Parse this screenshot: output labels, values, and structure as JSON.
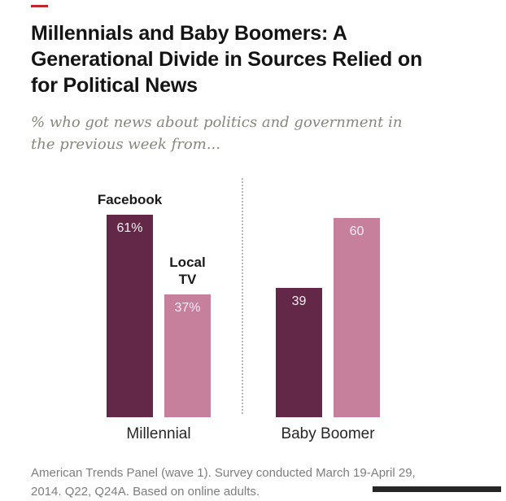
{
  "page": {
    "title": "Millennials and Baby Boomers: A Generational Divide in Sources Relied on for Political News",
    "subtitle": "% who got news about politics and government in the previous week from...",
    "footnote": "American Trends Panel (wave 1). Survey conducted March 19-April 29, 2014. Q22, Q24A. Based on online adults."
  },
  "colors": {
    "accent_red": "#c0272d",
    "bar_dark": "#632847",
    "bar_pink": "#c6809c",
    "subtitle_gray": "#87877e",
    "footnote_gray": "#7d7d7d"
  },
  "chart_data": {
    "type": "bar",
    "title": "Millennials and Baby Boomers: A Generational Divide in Sources Relied on for Political News",
    "subtitle": "% who got news about politics and government in the previous week from...",
    "categories": [
      "Millennial",
      "Baby Boomer"
    ],
    "series": [
      {
        "name": "Facebook",
        "color": "#632847",
        "values": [
          61,
          39
        ]
      },
      {
        "name": "Local TV",
        "color": "#c6809c",
        "values": [
          37,
          60
        ]
      }
    ],
    "groups": [
      {
        "label": "Millennial",
        "bars": [
          {
            "series": "Facebook",
            "value": 61,
            "display": "61%",
            "annotation": "Facebook"
          },
          {
            "series": "Local TV",
            "value": 37,
            "display": "37%",
            "annotation": "Local TV"
          }
        ]
      },
      {
        "label": "Baby Boomer",
        "bars": [
          {
            "series": "Facebook",
            "value": 39,
            "display": "39"
          },
          {
            "series": "Local TV",
            "value": 60,
            "display": "60"
          }
        ]
      }
    ],
    "ylim": [
      0,
      65
    ],
    "grid": false,
    "legend_position": "labels-above-first-group-bars",
    "xlabel": "",
    "ylabel": ""
  }
}
